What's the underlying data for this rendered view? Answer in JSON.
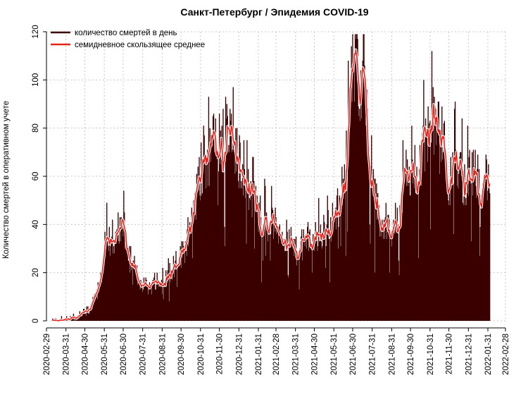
{
  "chart_data": {
    "type": "bar",
    "title": "Санкт-Петербург / Эпидемия COVID-19",
    "xlabel": "",
    "ylabel": "Количество смертей в оперативном учете",
    "ylim": [
      0,
      120
    ],
    "yticks": [
      0,
      20,
      40,
      60,
      80,
      100,
      120
    ],
    "xlim": [
      "2020-02-29",
      "2022-02-28"
    ],
    "xticks": [
      "2020-02-29",
      "2020-03-31",
      "2020-04-30",
      "2020-05-31",
      "2020-06-30",
      "2020-07-31",
      "2020-08-31",
      "2020-09-30",
      "2020-10-31",
      "2020-11-30",
      "2020-12-31",
      "2021-01-31",
      "2021-02-28",
      "2021-03-31",
      "2021-04-30",
      "2021-05-31",
      "2021-06-30",
      "2021-07-31",
      "2021-08-31",
      "2021-09-30",
      "2021-10-31",
      "2021-11-30",
      "2021-12-31",
      "2022-01-31",
      "2022-02-28"
    ],
    "grid": true,
    "legend_position": "top-left",
    "colors": {
      "bars": "#3a0000",
      "moving_average": "#e8231c",
      "ma_halo": "#ffffff"
    },
    "series": [
      {
        "name": "количество смертей в день",
        "kind": "bar",
        "x_start": "2020-03-10",
        "x_end": "2022-02-03",
        "anchors": [
          [
            "2020-03-10",
            0
          ],
          [
            "2020-03-31",
            0.5
          ],
          [
            "2020-04-10",
            1
          ],
          [
            "2020-04-20",
            2
          ],
          [
            "2020-05-01",
            4
          ],
          [
            "2020-05-10",
            6
          ],
          [
            "2020-05-20",
            12
          ],
          [
            "2020-05-26",
            18
          ],
          [
            "2020-06-01",
            32
          ],
          [
            "2020-06-05",
            38
          ],
          [
            "2020-06-10",
            32
          ],
          [
            "2020-06-15",
            30
          ],
          [
            "2020-06-22",
            35
          ],
          [
            "2020-06-28",
            41
          ],
          [
            "2020-07-02",
            37
          ],
          [
            "2020-07-08",
            28
          ],
          [
            "2020-07-15",
            24
          ],
          [
            "2020-07-25",
            17
          ],
          [
            "2020-08-05",
            15
          ],
          [
            "2020-08-15",
            14
          ],
          [
            "2020-08-25",
            16
          ],
          [
            "2020-09-05",
            18
          ],
          [
            "2020-09-15",
            21
          ],
          [
            "2020-09-25",
            25
          ],
          [
            "2020-10-05",
            30
          ],
          [
            "2020-10-15",
            38
          ],
          [
            "2020-10-25",
            52
          ],
          [
            "2020-11-01",
            62
          ],
          [
            "2020-11-08",
            66
          ],
          [
            "2020-11-15",
            70
          ],
          [
            "2020-11-22",
            74
          ],
          [
            "2020-11-30",
            76
          ],
          [
            "2020-12-08",
            78
          ],
          [
            "2020-12-13",
            79
          ],
          [
            "2020-12-20",
            74
          ],
          [
            "2020-12-26",
            68
          ],
          [
            "2021-01-02",
            66
          ],
          [
            "2021-01-10",
            62
          ],
          [
            "2021-01-18",
            55
          ],
          [
            "2021-01-25",
            48
          ],
          [
            "2021-02-02",
            45
          ],
          [
            "2021-02-10",
            43
          ],
          [
            "2021-02-18",
            41
          ],
          [
            "2021-02-28",
            39
          ],
          [
            "2021-03-10",
            37
          ],
          [
            "2021-03-20",
            33
          ],
          [
            "2021-04-01",
            29
          ],
          [
            "2021-04-10",
            31
          ],
          [
            "2021-04-20",
            34
          ],
          [
            "2021-05-01",
            34
          ],
          [
            "2021-05-10",
            36
          ],
          [
            "2021-05-20",
            39
          ],
          [
            "2021-05-31",
            42
          ],
          [
            "2021-06-08",
            48
          ],
          [
            "2021-06-15",
            60
          ],
          [
            "2021-06-22",
            78
          ],
          [
            "2021-06-28",
            97
          ],
          [
            "2021-07-02",
            106
          ],
          [
            "2021-07-05",
            108
          ],
          [
            "2021-07-10",
            103
          ],
          [
            "2021-07-18",
            100
          ],
          [
            "2021-07-25",
            84
          ],
          [
            "2021-07-31",
            62
          ],
          [
            "2021-08-06",
            50
          ],
          [
            "2021-08-12",
            42
          ],
          [
            "2021-08-20",
            37
          ],
          [
            "2021-08-28",
            36
          ],
          [
            "2021-09-05",
            39
          ],
          [
            "2021-09-12",
            48
          ],
          [
            "2021-09-20",
            57
          ],
          [
            "2021-09-30",
            59
          ],
          [
            "2021-10-08",
            63
          ],
          [
            "2021-10-15",
            66
          ],
          [
            "2021-10-22",
            70
          ],
          [
            "2021-10-28",
            80
          ],
          [
            "2021-11-03",
            85
          ],
          [
            "2021-11-10",
            79
          ],
          [
            "2021-11-18",
            74
          ],
          [
            "2021-11-25",
            66
          ],
          [
            "2021-11-30",
            57
          ],
          [
            "2021-12-05",
            58
          ],
          [
            "2021-12-10",
            65
          ],
          [
            "2021-12-15",
            63
          ],
          [
            "2021-12-22",
            58
          ],
          [
            "2021-12-31",
            60
          ],
          [
            "2022-01-10",
            62
          ],
          [
            "2022-01-20",
            61
          ],
          [
            "2022-02-03",
            60
          ]
        ]
      },
      {
        "name": "семидневное скользящее среднее",
        "kind": "line",
        "window_days": 7
      }
    ]
  }
}
